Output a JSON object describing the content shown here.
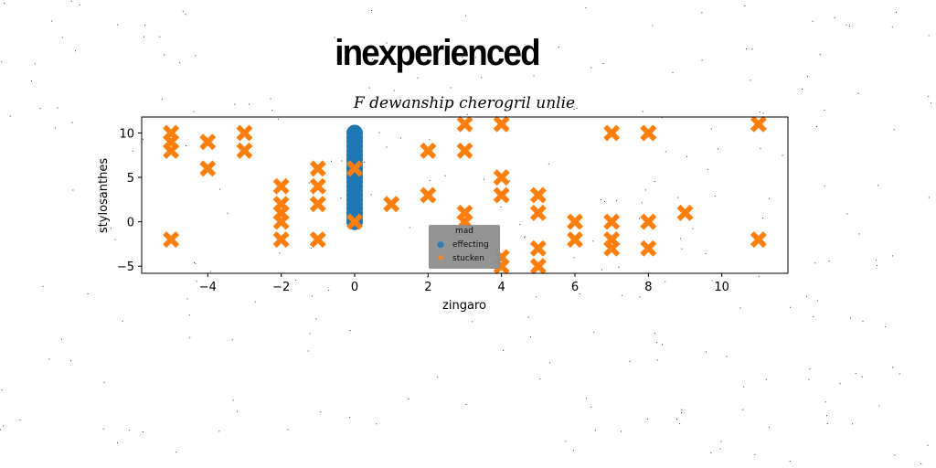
{
  "headline": "inexperienced",
  "chart_data": {
    "type": "scatter",
    "title": "F dewanship cherogril unlie",
    "xlabel": "zingaro",
    "ylabel": "stylosanthes",
    "xlim": [
      -5.8,
      11.8
    ],
    "ylim": [
      -5.8,
      11.8
    ],
    "xticks": [
      -4,
      -2,
      0,
      2,
      4,
      6,
      8,
      10
    ],
    "yticks": [
      -5,
      0,
      5,
      10
    ],
    "grid": false,
    "legend": {
      "title": "mad",
      "placement": "lower-center"
    },
    "series": [
      {
        "name": "effecting",
        "marker": "circle",
        "color": "#1f77b4",
        "x": [
          0,
          0,
          0,
          0,
          0,
          0,
          0,
          0,
          0,
          0,
          0,
          0,
          0,
          0,
          0,
          0,
          0,
          0,
          0,
          0,
          0
        ],
        "y": [
          0,
          0.5,
          1,
          1.5,
          2,
          2.5,
          3,
          3.5,
          4,
          4.5,
          5,
          5.5,
          6,
          6.5,
          7,
          7.5,
          8,
          8.5,
          9,
          9.5,
          10
        ]
      },
      {
        "name": "stucken",
        "marker": "x",
        "color": "#ff7f0e",
        "x": [
          -5,
          -5,
          -5,
          -5,
          -4,
          -4,
          -3,
          -3,
          -2,
          -2,
          -2,
          -2,
          -2,
          -1,
          -1,
          -1,
          -1,
          0,
          0,
          1,
          2,
          2,
          3,
          3,
          3,
          3,
          4,
          4,
          4,
          4,
          4,
          5,
          5,
          5,
          5,
          6,
          6,
          7,
          7,
          7,
          7,
          8,
          8,
          8,
          8,
          9,
          11,
          11
        ],
        "y": [
          10,
          9,
          8,
          -2,
          9,
          6,
          10,
          8,
          4,
          2,
          1,
          0,
          -2,
          6,
          4,
          2,
          -2,
          6,
          0,
          2,
          8,
          3,
          11,
          8,
          1,
          0,
          11,
          5,
          3,
          -4,
          -5,
          3,
          1,
          -3,
          -5,
          0,
          -2,
          10,
          0,
          -2,
          -3,
          10,
          0,
          -3,
          10,
          1,
          11,
          -2
        ]
      }
    ]
  }
}
